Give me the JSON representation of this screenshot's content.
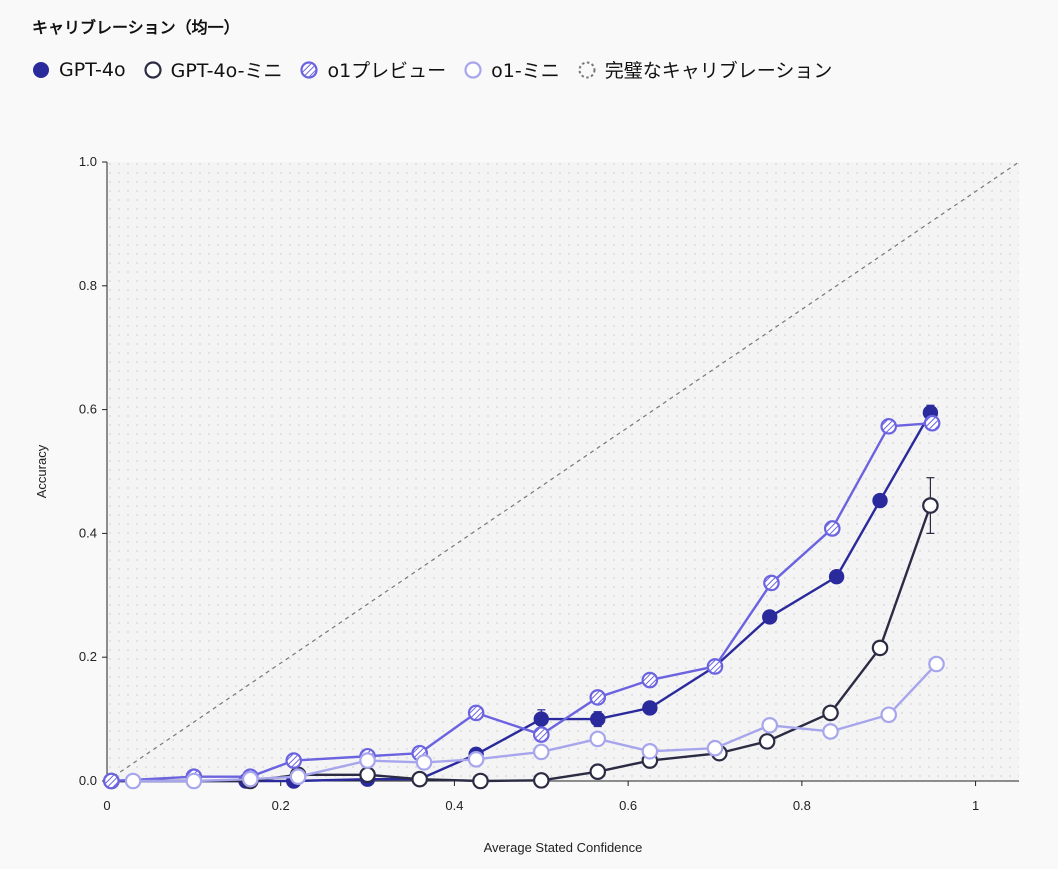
{
  "chart_data": {
    "type": "line",
    "title": "キャリブレーション（均一）",
    "xlabel": "Average Stated Confidence",
    "ylabel": "Accuracy",
    "xlim": [
      0,
      1.05
    ],
    "ylim": [
      0,
      1.0
    ],
    "x_ticks": [
      "0",
      "0.2",
      "0.4",
      "0.6",
      "0.8",
      "1"
    ],
    "y_ticks": [
      "0.0",
      "0.2",
      "0.4",
      "0.6",
      "0.8",
      "1.0"
    ],
    "grid": false,
    "background": "dotted",
    "legend_position": "top-left",
    "reference_line": {
      "name": "完璧なキャリブレーション",
      "from": [
        0,
        0
      ],
      "to": [
        1.05,
        1.0
      ],
      "style": "dashed",
      "color": "#777777"
    },
    "series": [
      {
        "name": "GPT-4o",
        "style": "filled",
        "color": "#2a2a9c",
        "points": [
          [
            0.005,
            0.0
          ],
          [
            0.1,
            0.0
          ],
          [
            0.16,
            0.0
          ],
          [
            0.215,
            0.0
          ],
          [
            0.3,
            0.003
          ],
          [
            0.36,
            0.003
          ],
          [
            0.425,
            0.043
          ],
          [
            0.5,
            0.1
          ],
          [
            0.565,
            0.1
          ],
          [
            0.625,
            0.118
          ],
          [
            0.7,
            0.185
          ],
          [
            0.763,
            0.265
          ],
          [
            0.84,
            0.33
          ],
          [
            0.89,
            0.453
          ],
          [
            0.948,
            0.595
          ]
        ],
        "error_bars": [
          [
            0.5,
            0.015
          ],
          [
            0.565,
            0.012
          ],
          [
            0.948,
            0.012
          ],
          [
            0.425,
            0.01
          ]
        ]
      },
      {
        "name": "GPT-4o-ミニ",
        "style": "open",
        "color": "#2b2b44",
        "points": [
          [
            0.005,
            0.0
          ],
          [
            0.165,
            0.0
          ],
          [
            0.22,
            0.01
          ],
          [
            0.3,
            0.01
          ],
          [
            0.36,
            0.003
          ],
          [
            0.43,
            0.0
          ],
          [
            0.5,
            0.001
          ],
          [
            0.565,
            0.015
          ],
          [
            0.625,
            0.033
          ],
          [
            0.705,
            0.045
          ],
          [
            0.76,
            0.064
          ],
          [
            0.833,
            0.11
          ],
          [
            0.89,
            0.215
          ],
          [
            0.948,
            0.445
          ]
        ],
        "error_bars": [
          [
            0.948,
            0.045
          ]
        ]
      },
      {
        "name": "o1プレビュー",
        "style": "hatched",
        "color": "#6b63e0",
        "points": [
          [
            0.005,
            0.0
          ],
          [
            0.1,
            0.007
          ],
          [
            0.165,
            0.007
          ],
          [
            0.215,
            0.033
          ],
          [
            0.3,
            0.04
          ],
          [
            0.36,
            0.045
          ],
          [
            0.425,
            0.11
          ],
          [
            0.5,
            0.075
          ],
          [
            0.565,
            0.135
          ],
          [
            0.625,
            0.163
          ],
          [
            0.7,
            0.185
          ],
          [
            0.765,
            0.32
          ],
          [
            0.835,
            0.408
          ],
          [
            0.9,
            0.573
          ],
          [
            0.95,
            0.578
          ]
        ],
        "error_bars": []
      },
      {
        "name": "o1-ミニ",
        "style": "open",
        "color": "#a7a6ec",
        "points": [
          [
            0.03,
            0.0
          ],
          [
            0.1,
            0.0
          ],
          [
            0.165,
            0.003
          ],
          [
            0.22,
            0.007
          ],
          [
            0.3,
            0.033
          ],
          [
            0.365,
            0.03
          ],
          [
            0.425,
            0.035
          ],
          [
            0.5,
            0.047
          ],
          [
            0.565,
            0.068
          ],
          [
            0.625,
            0.048
          ],
          [
            0.7,
            0.053
          ],
          [
            0.763,
            0.09
          ],
          [
            0.833,
            0.08
          ],
          [
            0.9,
            0.107
          ],
          [
            0.955,
            0.189
          ]
        ],
        "error_bars": []
      }
    ]
  }
}
